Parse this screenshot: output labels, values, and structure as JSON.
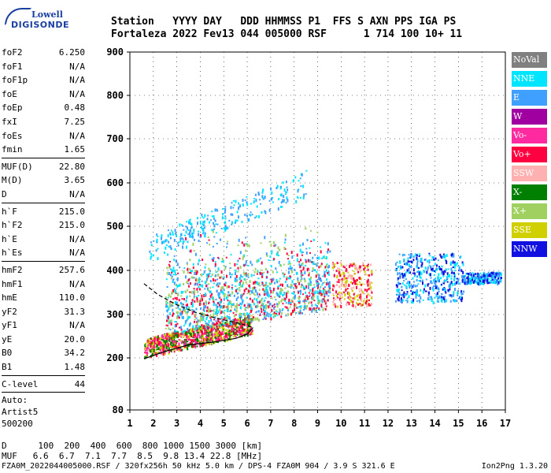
{
  "logo": {
    "line1": "Lowell",
    "line2": "DIGISONDE"
  },
  "header": {
    "row1": "Station   YYYY DAY   DDD HHMMSS P1  FFS S AXN PPS IGA PS",
    "row2": "Fortaleza 2022 Fev13 044 005000 RSF      1 714 100 10+ 11"
  },
  "params": [
    {
      "type": "row",
      "key": "foF2",
      "value": "6.250"
    },
    {
      "type": "row",
      "key": "foF1",
      "value": "N/A"
    },
    {
      "type": "row",
      "key": "foF1p",
      "value": "N/A"
    },
    {
      "type": "row",
      "key": "foE",
      "value": "N/A"
    },
    {
      "type": "row",
      "key": "foEp",
      "value": "0.48"
    },
    {
      "type": "row",
      "key": "fxI",
      "value": "7.25"
    },
    {
      "type": "row",
      "key": "foEs",
      "value": "N/A"
    },
    {
      "type": "row",
      "key": "fmin",
      "value": "1.65"
    },
    {
      "type": "sep"
    },
    {
      "type": "row",
      "key": "MUF(D)",
      "value": "22.80"
    },
    {
      "type": "row",
      "key": "M(D)",
      "value": "3.65"
    },
    {
      "type": "row",
      "key": "D",
      "value": "N/A"
    },
    {
      "type": "sep"
    },
    {
      "type": "row",
      "key": "h`F",
      "value": "215.0"
    },
    {
      "type": "row",
      "key": "h`F2",
      "value": "215.0"
    },
    {
      "type": "row",
      "key": "h`E",
      "value": "N/A"
    },
    {
      "type": "row",
      "key": "h`Es",
      "value": "N/A"
    },
    {
      "type": "sep"
    },
    {
      "type": "row",
      "key": "hmF2",
      "value": "257.6"
    },
    {
      "type": "row",
      "key": "hmF1",
      "value": "N/A"
    },
    {
      "type": "row",
      "key": "hmE",
      "value": "110.0"
    },
    {
      "type": "row",
      "key": "yF2",
      "value": "31.3"
    },
    {
      "type": "row",
      "key": "yF1",
      "value": "N/A"
    },
    {
      "type": "row",
      "key": "yE",
      "value": "20.0"
    },
    {
      "type": "row",
      "key": "B0",
      "value": "34.2"
    },
    {
      "type": "row",
      "key": "B1",
      "value": "1.48"
    },
    {
      "type": "sep"
    },
    {
      "type": "row",
      "key": "C-level",
      "value": "44"
    },
    {
      "type": "sep"
    },
    {
      "type": "text",
      "value": "Auto:"
    },
    {
      "type": "text",
      "value": "Artist5"
    },
    {
      "type": "text",
      "value": "500200"
    }
  ],
  "legend": [
    {
      "label": "NoVal",
      "color": "#808080"
    },
    {
      "label": "NNE",
      "color": "#00e5ff"
    },
    {
      "label": "E",
      "color": "#40a0ff"
    },
    {
      "label": "W",
      "color": "#a000a0"
    },
    {
      "label": "Vo-",
      "color": "#ff2aa0"
    },
    {
      "label": "Vo+",
      "color": "#ff0040"
    },
    {
      "label": "SSW",
      "color": "#ffb0b0"
    },
    {
      "label": "X-",
      "color": "#008000"
    },
    {
      "label": "X+",
      "color": "#a0d060"
    },
    {
      "label": "SSE",
      "color": "#d0d000"
    },
    {
      "label": "NNW",
      "color": "#1010e0"
    }
  ],
  "d_muf": {
    "d_row": "D      100  200  400  600  800 1000 1500 3000 [km]",
    "muf_row": "MUF   6.6  6.7  7.1  7.7  8.5  9.8 13.4 22.8 [MHz]"
  },
  "footer": "FZA0M_2022044005000.RSF / 320fx256h 50 kHz 5.0 km / DPS-4 FZA0M 904 / 3.9 S 321.6 E",
  "footer_right": "Ion2Png 1.3.20",
  "chart_data": {
    "type": "scatter",
    "x_ticks": [
      "1",
      "2",
      "3",
      "4",
      "5",
      "6",
      "7",
      "8",
      "9",
      "10",
      "11",
      "12",
      "13",
      "14",
      "15",
      "16",
      "17"
    ],
    "y_ticks": [
      "80",
      "200",
      "300",
      "400",
      "500",
      "600",
      "700",
      "800",
      "900"
    ],
    "xlim": [
      1,
      17
    ],
    "y_axis_tick_values": [
      80,
      200,
      300,
      400,
      500,
      600,
      700,
      800,
      900
    ],
    "grid": true,
    "legend_position": "right",
    "echo_regions": [
      {
        "name": "o-trace",
        "x_range": [
          1.6,
          6.2
        ],
        "y_range": [
          210,
          290
        ],
        "dominant": [
          "Vo+",
          "Vo-",
          "X-",
          "SSE"
        ]
      },
      {
        "name": "spread-F",
        "x_range": [
          2.5,
          9.5
        ],
        "y_range": [
          250,
          500
        ],
        "dominant": [
          "Vo+",
          "E",
          "NNE",
          "X+"
        ]
      },
      {
        "name": "high-spread",
        "x_range": [
          1.8,
          8.5
        ],
        "y_range": [
          450,
          650
        ],
        "dominant": [
          "E",
          "NNE"
        ]
      },
      {
        "name": "mid-cluster",
        "x_range": [
          9.6,
          11.3
        ],
        "y_range": [
          320,
          420
        ],
        "dominant": [
          "SSW",
          "SSE",
          "Vo+"
        ]
      },
      {
        "name": "right-cluster",
        "x_range": [
          12.3,
          16.8
        ],
        "y_range": [
          330,
          450
        ],
        "dominant": [
          "NNW",
          "E",
          "NNE"
        ]
      }
    ],
    "curves": [
      {
        "name": "profile",
        "style": "solid",
        "points": [
          [
            1.6,
            198
          ],
          [
            2.5,
            215
          ],
          [
            3.5,
            230
          ],
          [
            4.5,
            236
          ],
          [
            5.5,
            245
          ],
          [
            6.0,
            255
          ],
          [
            6.25,
            270
          ]
        ]
      },
      {
        "name": "extrapolation",
        "style": "dashed",
        "points": [
          [
            1.6,
            370
          ],
          [
            2.2,
            345
          ],
          [
            3.0,
            322
          ],
          [
            3.8,
            305
          ],
          [
            4.6,
            293
          ],
          [
            5.4,
            283
          ],
          [
            6.0,
            275
          ],
          [
            6.25,
            270
          ]
        ]
      }
    ]
  }
}
